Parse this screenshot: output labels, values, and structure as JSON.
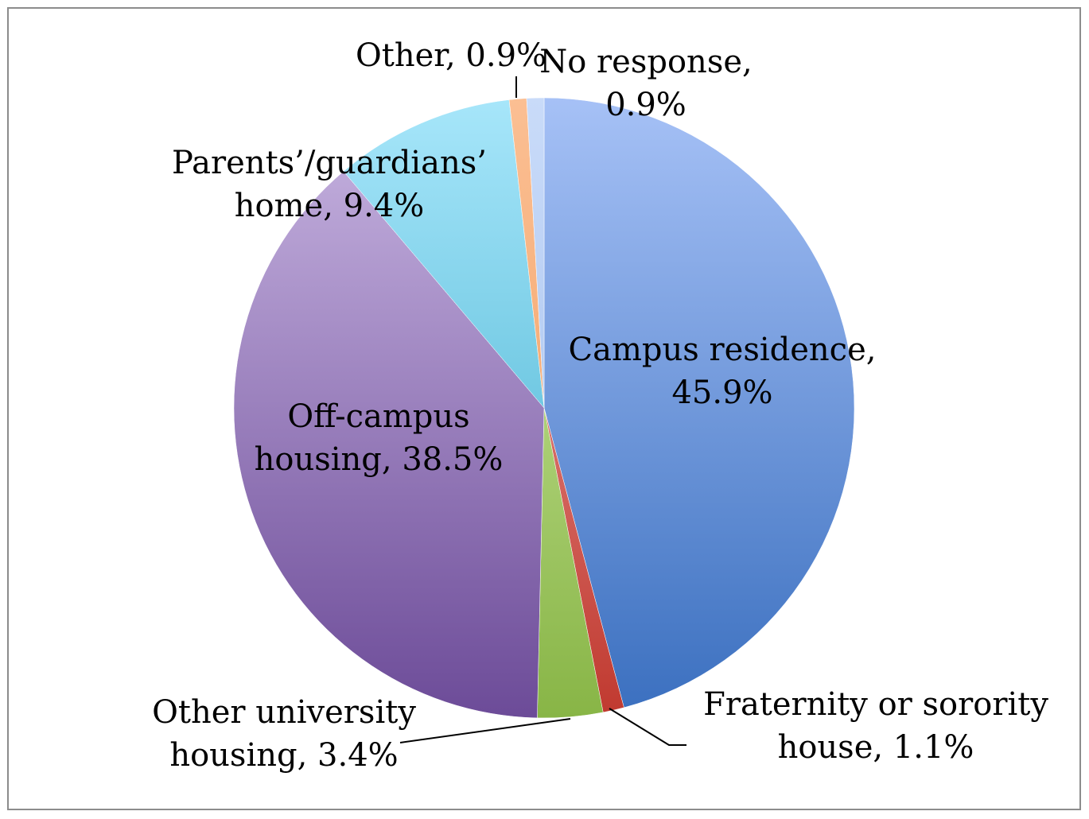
{
  "chart_data": {
    "type": "pie",
    "title": "",
    "legend": "none",
    "slices": [
      {
        "label": "Campus residence",
        "value": 45.9,
        "display": [
          "Campus residence,",
          "45.9%"
        ],
        "color_light": "#a6c1f6",
        "color_dark": "#3a6fbf"
      },
      {
        "label": "Fraternity or sorority house",
        "value": 1.1,
        "display": [
          "Fraternity or sorority",
          "house, 1.1%"
        ],
        "color_light": "#f0a8a6",
        "color_dark": "#c0392f"
      },
      {
        "label": "Other university housing",
        "value": 3.4,
        "display": [
          "Other university",
          "housing, 3.4%"
        ],
        "color_light": "#d2eda8",
        "color_dark": "#88b546"
      },
      {
        "label": "Off-campus housing",
        "value": 38.5,
        "display": [
          "Off-campus",
          "housing, 38.5%"
        ],
        "color_light": "#c9b6e2",
        "color_dark": "#6c4b98"
      },
      {
        "label": "Parents’/guardians’ home",
        "value": 9.4,
        "display": [
          "Parents’/guardians’",
          "home, 9.4%"
        ],
        "color_light": "#a7e6fa",
        "color_dark": "#3aabcb"
      },
      {
        "label": "Other",
        "value": 0.9,
        "display": [
          "Other, 0.9%"
        ],
        "color_light": "#fbbf93",
        "color_dark": "#f09a5a"
      },
      {
        "label": "No response",
        "value": 0.9,
        "display": [
          "No response,",
          "0.9%"
        ],
        "color_light": "#c9dbf9",
        "color_dark": "#9ebceb"
      }
    ]
  }
}
